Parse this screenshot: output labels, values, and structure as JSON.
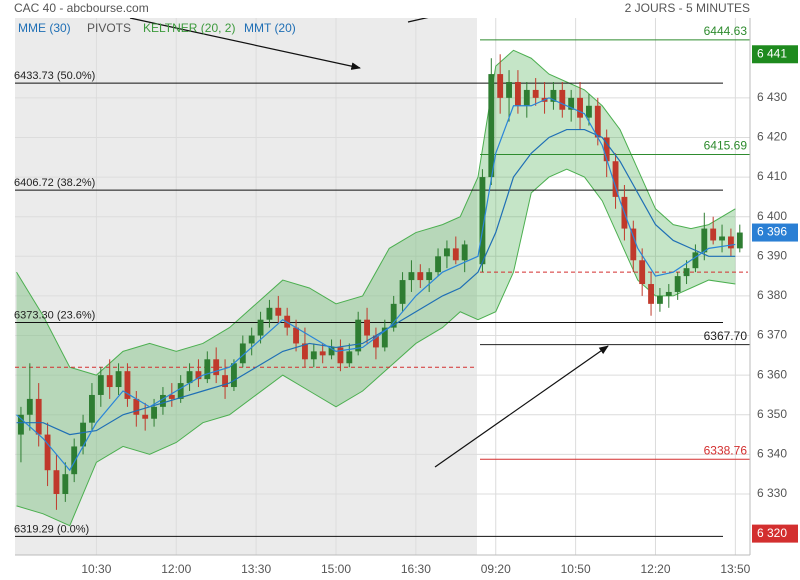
{
  "chart_data": {
    "type": "candlestick",
    "title": "CAC 40 - abcbourse.com",
    "subtitle": "2 JOURS - 5 MINUTES",
    "legend": [
      "MME (30)",
      "PIVOTS",
      "KELTNER (20, 2)",
      "MMT (20)"
    ],
    "up_color": "#2e7d32",
    "down_color": "#c0392b",
    "xlim": [
      -1.86,
      82.65
    ],
    "ylim": [
      6314.6,
      6454.7
    ],
    "grid": true,
    "xticks": [
      {
        "value": 9,
        "label": "10:30"
      },
      {
        "value": 18,
        "label": "12:00"
      },
      {
        "value": 27,
        "label": "13:30"
      },
      {
        "value": 36,
        "label": "15:00"
      },
      {
        "value": 45,
        "label": "16:30"
      },
      {
        "value": 54,
        "label": "09:20"
      },
      {
        "value": 63,
        "label": "10:50"
      },
      {
        "value": 72,
        "label": "12:20"
      },
      {
        "value": 81,
        "label": "13:50"
      }
    ],
    "yticks": [
      {
        "value": 6330,
        "label": "6 330"
      },
      {
        "value": 6340,
        "label": "6 340"
      },
      {
        "value": 6350,
        "label": "6 350"
      },
      {
        "value": 6360,
        "label": "6 360"
      },
      {
        "value": 6370,
        "label": "6 370"
      },
      {
        "value": 6380,
        "label": "6 380"
      },
      {
        "value": 6390,
        "label": "6 390"
      },
      {
        "value": 6400,
        "label": "6 400"
      },
      {
        "value": 6410,
        "label": "6 410"
      },
      {
        "value": 6420,
        "label": "6 420"
      },
      {
        "value": 6430,
        "label": "6 430"
      }
    ],
    "x": [
      0,
      1,
      2,
      3,
      4,
      5,
      6,
      7,
      8,
      9,
      10,
      11,
      12,
      13,
      14,
      15,
      16,
      17,
      18,
      19,
      20,
      21,
      22,
      23,
      24,
      25,
      26,
      27,
      28,
      29,
      30,
      31,
      32,
      33,
      34,
      35,
      36,
      37,
      38,
      39,
      40,
      41,
      42,
      43,
      44,
      45,
      46,
      47,
      48,
      49,
      50,
      52,
      53,
      54,
      55,
      56,
      57,
      58,
      59,
      60,
      61,
      62,
      63,
      64,
      65,
      66,
      67,
      68,
      69,
      70,
      71,
      72,
      73,
      74,
      75,
      76,
      77,
      78,
      79,
      80,
      81
    ],
    "ohlc": [
      [
        6345,
        6352,
        6338,
        6350
      ],
      [
        6350,
        6363,
        6346,
        6354
      ],
      [
        6354,
        6358,
        6342,
        6345
      ],
      [
        6345,
        6348,
        6332,
        6336
      ],
      [
        6336,
        6340,
        6326,
        6330
      ],
      [
        6330,
        6338,
        6328,
        6335
      ],
      [
        6335,
        6344,
        6333,
        6342
      ],
      [
        6342,
        6350,
        6340,
        6348
      ],
      [
        6348,
        6358,
        6346,
        6355
      ],
      [
        6355,
        6362,
        6352,
        6360
      ],
      [
        6360,
        6364,
        6354,
        6357
      ],
      [
        6357,
        6363,
        6355,
        6361
      ],
      [
        6361,
        6363,
        6352,
        6354
      ],
      [
        6354,
        6356,
        6347,
        6350
      ],
      [
        6350,
        6353,
        6346,
        6349
      ],
      [
        6349,
        6354,
        6347,
        6352
      ],
      [
        6352,
        6357,
        6350,
        6355
      ],
      [
        6355,
        6358,
        6352,
        6354
      ],
      [
        6354,
        6360,
        6353,
        6358
      ],
      [
        6358,
        6363,
        6356,
        6361
      ],
      [
        6361,
        6364,
        6357,
        6359
      ],
      [
        6359,
        6366,
        6358,
        6364
      ],
      [
        6364,
        6367,
        6358,
        6360
      ],
      [
        6360,
        6364,
        6354,
        6357
      ],
      [
        6357,
        6364,
        6356,
        6363
      ],
      [
        6363,
        6370,
        6362,
        6368
      ],
      [
        6368,
        6372,
        6365,
        6370
      ],
      [
        6370,
        6376,
        6368,
        6374
      ],
      [
        6374,
        6379,
        6372,
        6377
      ],
      [
        6377,
        6380,
        6373,
        6375
      ],
      [
        6375,
        6377,
        6370,
        6372
      ],
      [
        6372,
        6374,
        6366,
        6368
      ],
      [
        6368,
        6372,
        6362,
        6364
      ],
      [
        6364,
        6368,
        6362,
        6366
      ],
      [
        6366,
        6368,
        6363,
        6365
      ],
      [
        6365,
        6369,
        6364,
        6367
      ],
      [
        6367,
        6369,
        6361,
        6363
      ],
      [
        6363,
        6368,
        6362,
        6366
      ],
      [
        6366,
        6376,
        6365,
        6374
      ],
      [
        6374,
        6377,
        6368,
        6370
      ],
      [
        6370,
        6372,
        6364,
        6367
      ],
      [
        6367,
        6374,
        6366,
        6372
      ],
      [
        6372,
        6380,
        6371,
        6378
      ],
      [
        6378,
        6386,
        6376,
        6384
      ],
      [
        6384,
        6389,
        6381,
        6386
      ],
      [
        6386,
        6388,
        6382,
        6384
      ],
      [
        6384,
        6387,
        6381,
        6386
      ],
      [
        6386,
        6392,
        6385,
        6390
      ],
      [
        6390,
        6394,
        6387,
        6392
      ],
      [
        6392,
        6395,
        6388,
        6389
      ],
      [
        6389,
        6394,
        6386,
        6393
      ],
      [
        6388,
        6412,
        6386,
        6410
      ],
      [
        6410,
        6440,
        6408,
        6436
      ],
      [
        6436,
        6441,
        6426,
        6430
      ],
      [
        6430,
        6437,
        6424,
        6434
      ],
      [
        6434,
        6437,
        6426,
        6428
      ],
      [
        6428,
        6434,
        6425,
        6432
      ],
      [
        6432,
        6435,
        6428,
        6430
      ],
      [
        6430,
        6434,
        6426,
        6429
      ],
      [
        6429,
        6434,
        6427,
        6432
      ],
      [
        6432,
        6434,
        6425,
        6427
      ],
      [
        6427,
        6432,
        6424,
        6430
      ],
      [
        6430,
        6434,
        6422,
        6425
      ],
      [
        6425,
        6431,
        6423,
        6428
      ],
      [
        6428,
        6430,
        6418,
        6420
      ],
      [
        6420,
        6422,
        6410,
        6414
      ],
      [
        6414,
        6416,
        6402,
        6405
      ],
      [
        6405,
        6408,
        6394,
        6397
      ],
      [
        6397,
        6399,
        6386,
        6389
      ],
      [
        6389,
        6392,
        6380,
        6383
      ],
      [
        6383,
        6386,
        6375,
        6378
      ],
      [
        6378,
        6382,
        6376,
        6380
      ],
      [
        6380,
        6383,
        6377,
        6381
      ],
      [
        6381,
        6386,
        6379,
        6385
      ],
      [
        6385,
        6389,
        6383,
        6387
      ],
      [
        6387,
        6393,
        6386,
        6391
      ],
      [
        6391,
        6401,
        6389,
        6397
      ],
      [
        6397,
        6400,
        6393,
        6394
      ],
      [
        6394,
        6398,
        6391,
        6395
      ],
      [
        6395,
        6397,
        6390,
        6392
      ],
      [
        6392,
        6398,
        6391,
        6396
      ]
    ],
    "band": {
      "color": "#4caf50",
      "x": [
        0,
        3,
        6,
        9,
        12,
        15,
        18,
        21,
        24,
        27,
        30,
        33,
        36,
        39,
        42,
        45,
        48,
        50,
        52,
        54,
        56,
        58,
        60,
        62,
        64,
        66,
        68,
        70,
        72,
        74,
        76,
        78,
        81
      ],
      "upper": [
        6386,
        6375,
        6362,
        6360,
        6366,
        6368,
        6366,
        6368,
        6372,
        6378,
        6384,
        6382,
        6378,
        6380,
        6392,
        6396,
        6398,
        6400,
        6410,
        6438,
        6442,
        6440,
        6436,
        6434,
        6432,
        6428,
        6422,
        6412,
        6402,
        6398,
        6397,
        6398,
        6402
      ],
      "lower": [
        6327,
        6325,
        6322,
        6338,
        6342,
        6340,
        6343,
        6348,
        6350,
        6355,
        6360,
        6356,
        6352,
        6356,
        6362,
        6368,
        6372,
        6376,
        6374,
        6376,
        6386,
        6406,
        6410,
        6412,
        6410,
        6404,
        6394,
        6384,
        6380,
        6380,
        6382,
        6384,
        6383
      ]
    },
    "series": [
      {
        "name": "MME (30)",
        "color": "#1f6fb5",
        "x": [
          0,
          3,
          6,
          9,
          12,
          15,
          18,
          21,
          24,
          27,
          30,
          33,
          36,
          39,
          42,
          45,
          48,
          50,
          52,
          54,
          56,
          58,
          60,
          62,
          64,
          66,
          68,
          70,
          72,
          74,
          76,
          78,
          81
        ],
        "values": [
          6348,
          6348,
          6345,
          6346,
          6350,
          6352,
          6354,
          6356,
          6358,
          6362,
          6366,
          6368,
          6367,
          6368,
          6372,
          6376,
          6380,
          6382,
          6386,
          6396,
          6410,
          6416,
          6420,
          6422,
          6422,
          6420,
          6414,
          6406,
          6398,
          6394,
          6392,
          6390,
          6390
        ]
      },
      {
        "name": "MMT (20)",
        "color": "#2a85d8",
        "x": [
          0,
          3,
          6,
          9,
          12,
          15,
          18,
          21,
          24,
          27,
          30,
          33,
          36,
          39,
          42,
          45,
          48,
          50,
          52,
          54,
          56,
          58,
          60,
          62,
          64,
          66,
          68,
          70,
          72,
          74,
          76,
          78,
          81
        ],
        "values": [
          6350,
          6344,
          6336,
          6348,
          6356,
          6352,
          6356,
          6360,
          6362,
          6368,
          6374,
          6370,
          6366,
          6367,
          6372,
          6380,
          6386,
          6388,
          6390,
          6416,
          6428,
          6428,
          6430,
          6428,
          6426,
          6418,
          6404,
          6392,
          6385,
          6386,
          6389,
          6392,
          6393
        ]
      }
    ],
    "pivots": [
      {
        "value": 6362,
        "color": "#d32f2f"
      },
      {
        "value": 6386,
        "color": "#d32f2f"
      }
    ],
    "fib_levels": [
      {
        "value": 6433.73,
        "label": "6433.73  (50.0%)"
      },
      {
        "value": 6406.72,
        "label": "6406.72  (38.2%)"
      },
      {
        "value": 6373.3,
        "label": "6373.30  (23.6%)"
      },
      {
        "value": 6319.29,
        "label": "6319.29  (0.0%)"
      }
    ],
    "day_levels": [
      {
        "value": 6444.63,
        "label": "6444.63",
        "color": "#2e8b2e"
      },
      {
        "value": 6415.69,
        "label": "6415.69",
        "color": "#2e8b2e"
      },
      {
        "value": 6367.7,
        "label": "6367.70",
        "color": "#222222"
      },
      {
        "value": 6338.76,
        "label": "6338.76",
        "color": "#d32f2f"
      }
    ],
    "price_tags": [
      {
        "value": 6441,
        "label": "6 441",
        "color": "#1e8a1e"
      },
      {
        "value": 6396,
        "label": "6 396",
        "color": "#2a7fd4"
      },
      {
        "value": 6320,
        "label": "6 320",
        "color": "#d32f2f"
      }
    ]
  }
}
